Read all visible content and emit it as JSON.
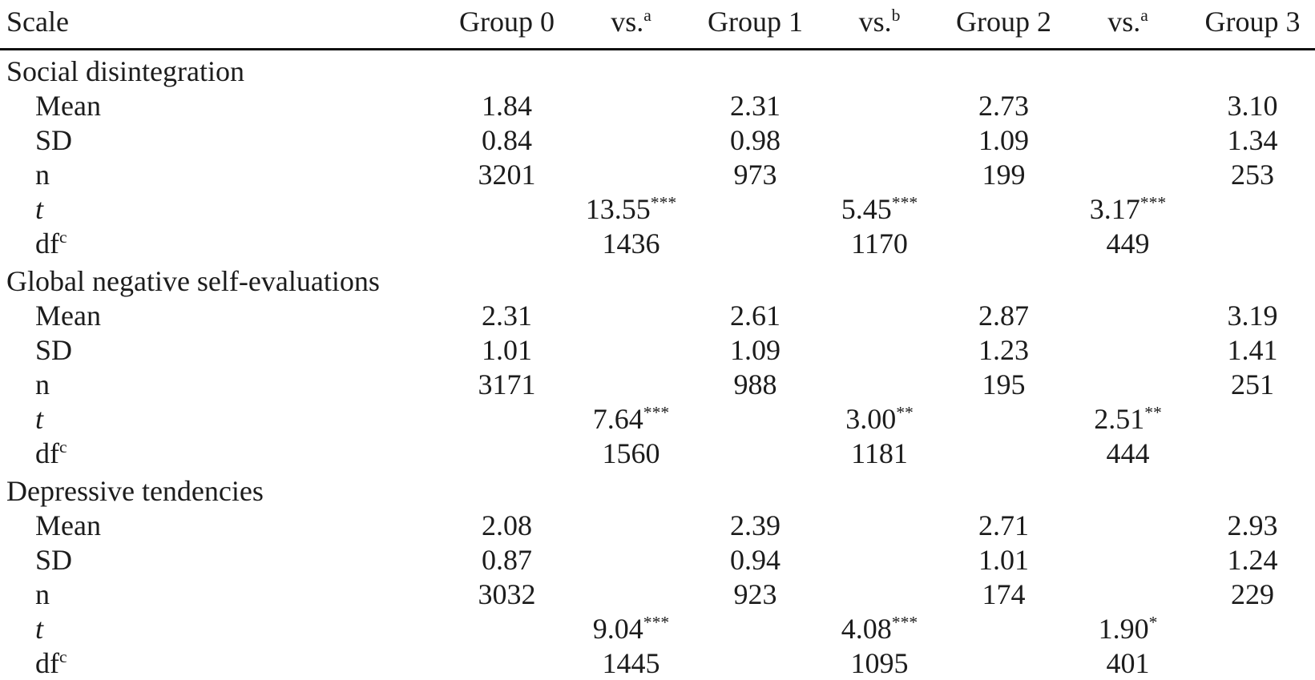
{
  "colors": {
    "background": "#ffffff",
    "text": "#1c1c1c",
    "header_rule": "#111111"
  },
  "table": {
    "header": [
      {
        "text": "Scale"
      },
      {
        "text": "Group 0"
      },
      {
        "text": "vs.",
        "sup": "a"
      },
      {
        "text": "Group 1"
      },
      {
        "text": "vs.",
        "sup": "b"
      },
      {
        "text": "Group 2"
      },
      {
        "text": "vs.",
        "sup": "a"
      },
      {
        "text": "Group 3"
      }
    ],
    "sections": [
      {
        "title": "Social disintegration",
        "rows": [
          {
            "label": {
              "text": "Mean"
            },
            "cells": [
              "1.84",
              "",
              "2.31",
              "",
              "2.73",
              "",
              "3.10"
            ]
          },
          {
            "label": {
              "text": "SD"
            },
            "cells": [
              "0.84",
              "",
              "0.98",
              "",
              "1.09",
              "",
              "1.34"
            ]
          },
          {
            "label": {
              "text": "n"
            },
            "cells": [
              "3201",
              "",
              "973",
              "",
              "199",
              "",
              "253"
            ]
          },
          {
            "label": {
              "text": "t",
              "italic": true
            },
            "cells": [
              "",
              {
                "text": "13.55",
                "sup": "***"
              },
              "",
              {
                "text": "5.45",
                "sup": "***"
              },
              "",
              {
                "text": "3.17",
                "sup": "***"
              },
              ""
            ]
          },
          {
            "label": {
              "text": "df",
              "sup": "c"
            },
            "cells": [
              "",
              "1436",
              "",
              "1170",
              "",
              "449",
              ""
            ]
          }
        ]
      },
      {
        "title": "Global negative self-evaluations",
        "rows": [
          {
            "label": {
              "text": "Mean"
            },
            "cells": [
              "2.31",
              "",
              "2.61",
              "",
              "2.87",
              "",
              "3.19"
            ]
          },
          {
            "label": {
              "text": "SD"
            },
            "cells": [
              "1.01",
              "",
              "1.09",
              "",
              "1.23",
              "",
              "1.41"
            ]
          },
          {
            "label": {
              "text": "n"
            },
            "cells": [
              "3171",
              "",
              "988",
              "",
              "195",
              "",
              "251"
            ]
          },
          {
            "label": {
              "text": "t",
              "italic": true
            },
            "cells": [
              "",
              {
                "text": "7.64",
                "sup": "***"
              },
              "",
              {
                "text": "3.00",
                "sup": "**"
              },
              "",
              {
                "text": "2.51",
                "sup": "**"
              },
              ""
            ]
          },
          {
            "label": {
              "text": "df",
              "sup": "c"
            },
            "cells": [
              "",
              "1560",
              "",
              "1181",
              "",
              "444",
              ""
            ]
          }
        ]
      },
      {
        "title": "Depressive tendencies",
        "rows": [
          {
            "label": {
              "text": "Mean"
            },
            "cells": [
              "2.08",
              "",
              "2.39",
              "",
              "2.71",
              "",
              "2.93"
            ]
          },
          {
            "label": {
              "text": "SD"
            },
            "cells": [
              "0.87",
              "",
              "0.94",
              "",
              "1.01",
              "",
              "1.24"
            ]
          },
          {
            "label": {
              "text": "n"
            },
            "cells": [
              "3032",
              "",
              "923",
              "",
              "174",
              "",
              "229"
            ]
          },
          {
            "label": {
              "text": "t",
              "italic": true
            },
            "cells": [
              "",
              {
                "text": "9.04",
                "sup": "***"
              },
              "",
              {
                "text": "4.08",
                "sup": "***"
              },
              "",
              {
                "text": "1.90",
                "sup": "*"
              },
              ""
            ]
          },
          {
            "label": {
              "text": "df",
              "sup": "c"
            },
            "cells": [
              "",
              "1445",
              "",
              "1095",
              "",
              "401",
              ""
            ]
          }
        ]
      }
    ]
  }
}
